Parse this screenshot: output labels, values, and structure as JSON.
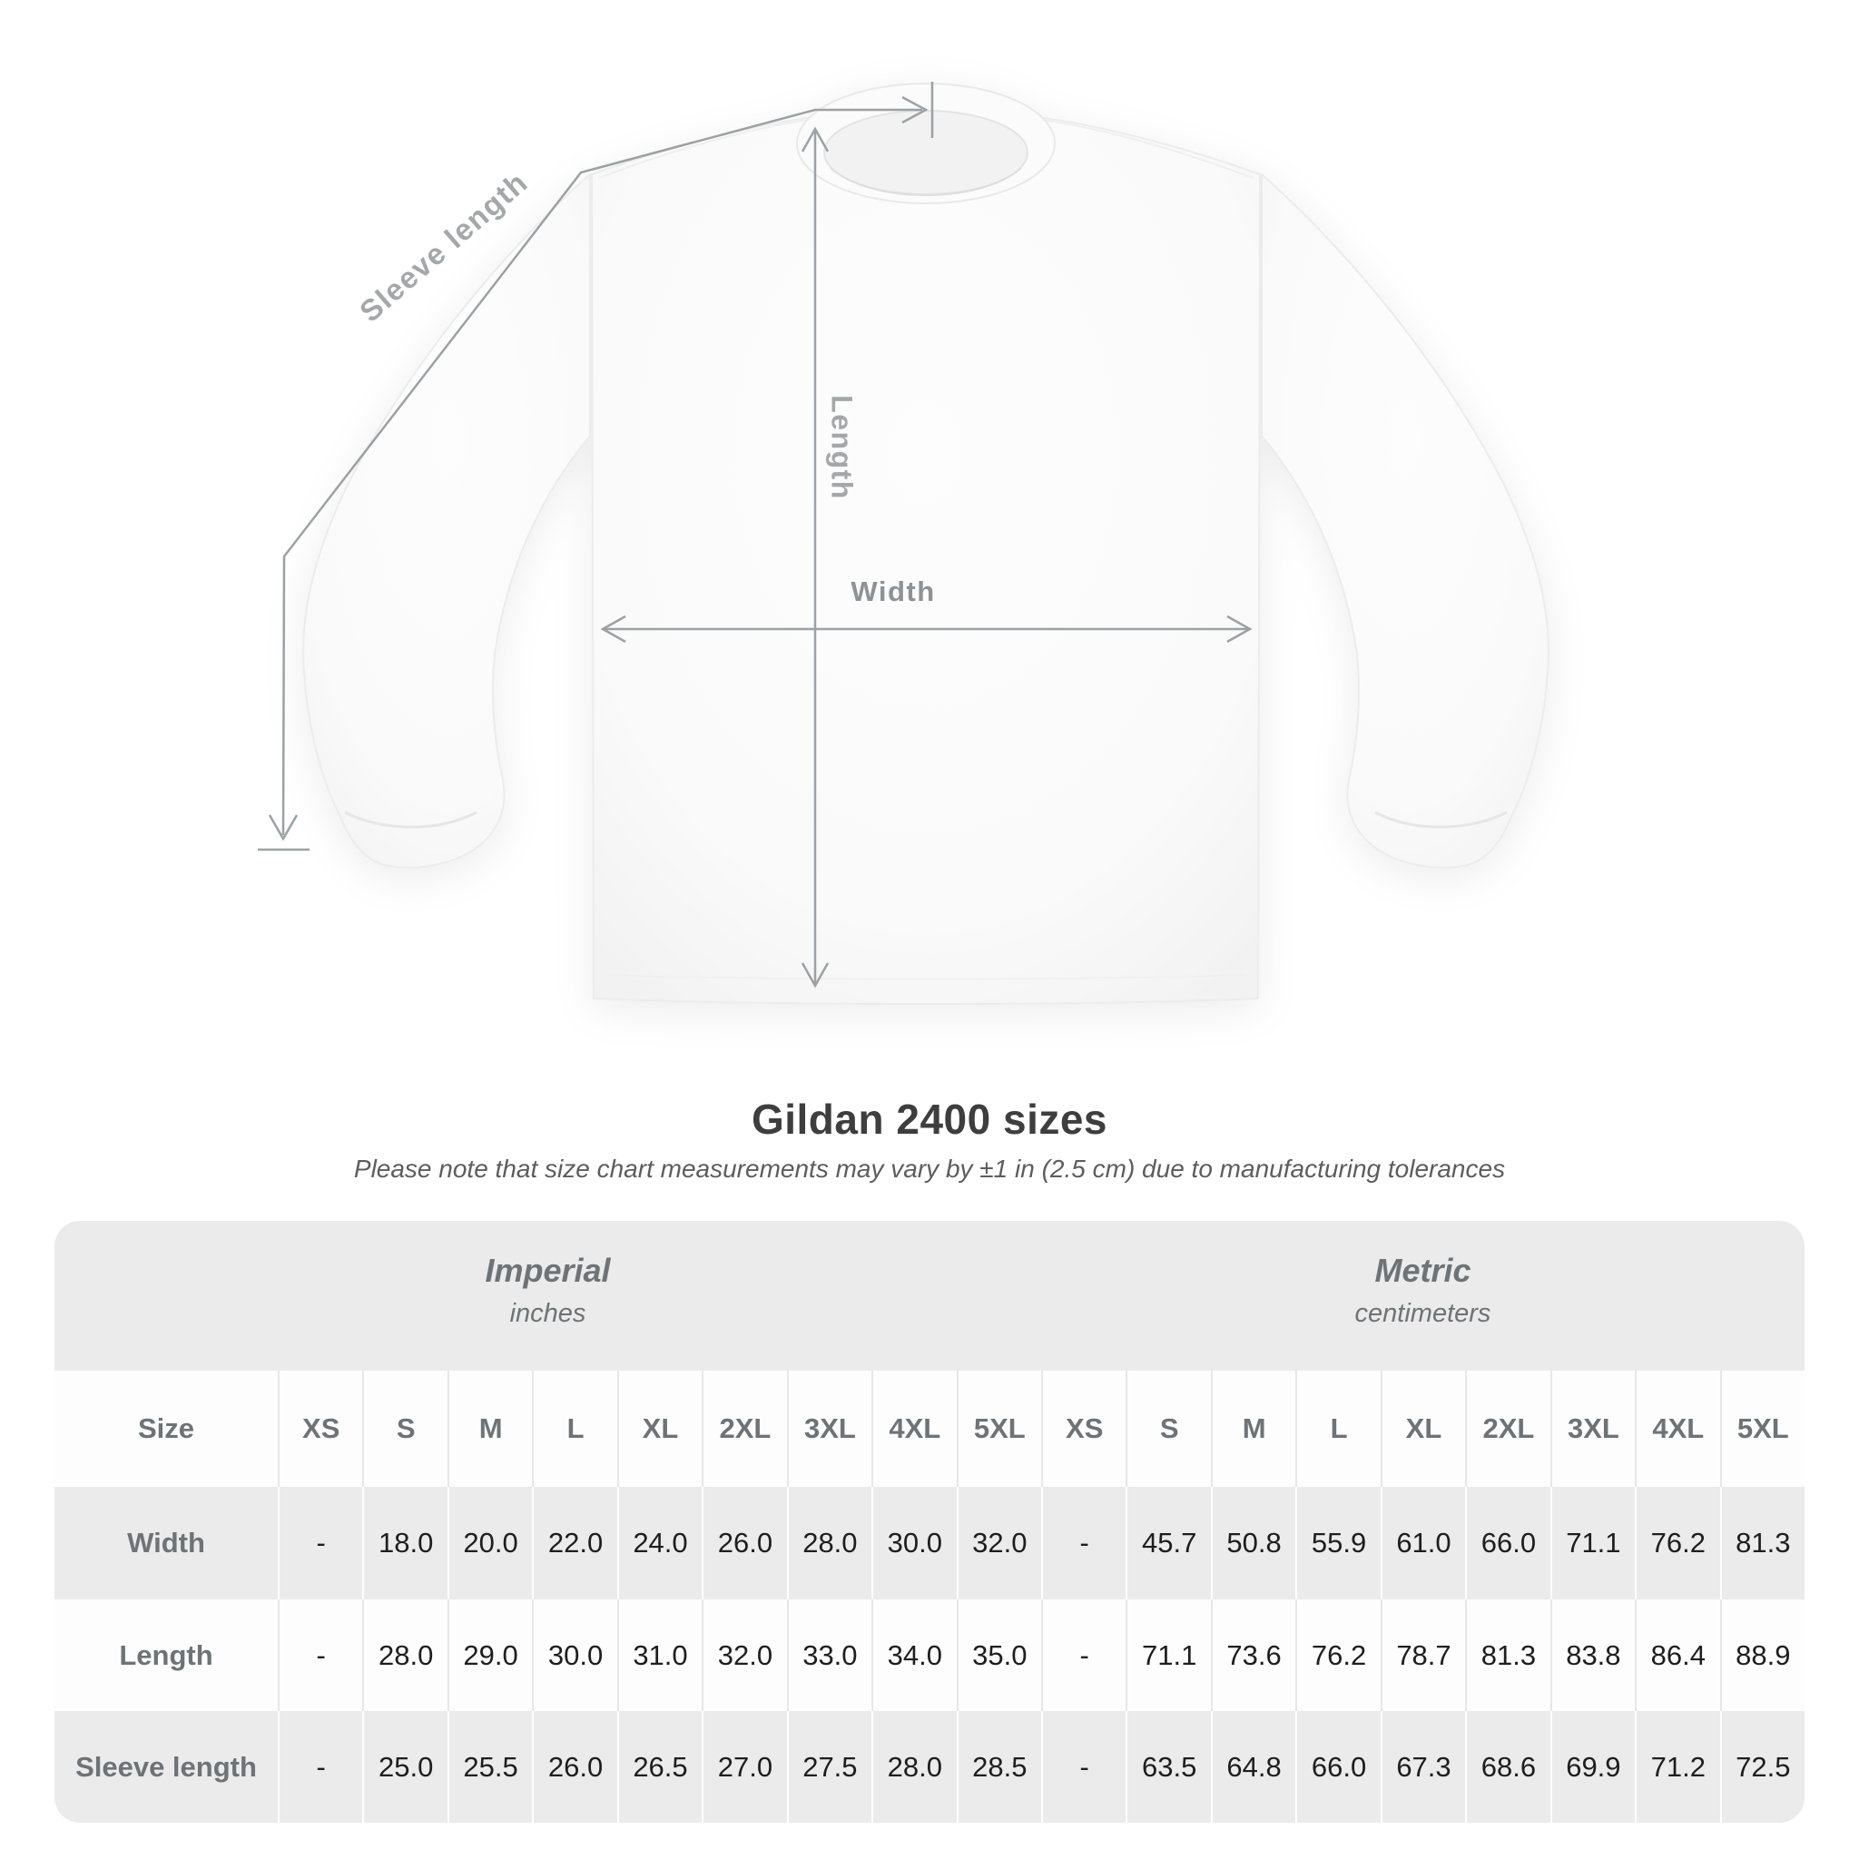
{
  "title": "Gildan 2400 sizes",
  "subtitle": "Please note that size chart measurements may vary by ±1 in (2.5 cm) due to manufacturing tolerances",
  "diagram": {
    "sleeve_length_label": "Sleeve length",
    "length_label": "Length",
    "width_label": "Width"
  },
  "chart_data": {
    "type": "table",
    "title": "Gildan 2400 sizes",
    "note": "Please note that size chart measurements may vary by ±1 in (2.5 cm) due to manufacturing tolerances",
    "unit_groups": [
      {
        "name": "Imperial",
        "unit": "inches"
      },
      {
        "name": "Metric",
        "unit": "centimeters"
      }
    ],
    "size_header_label": "Size",
    "sizes": [
      "XS",
      "S",
      "M",
      "L",
      "XL",
      "2XL",
      "3XL",
      "4XL",
      "5XL"
    ],
    "rows": [
      {
        "label": "Width",
        "imperial": [
          "-",
          "18.0",
          "20.0",
          "22.0",
          "24.0",
          "26.0",
          "28.0",
          "30.0",
          "32.0"
        ],
        "metric": [
          "-",
          "45.7",
          "50.8",
          "55.9",
          "61.0",
          "66.0",
          "71.1",
          "76.2",
          "81.3"
        ]
      },
      {
        "label": "Length",
        "imperial": [
          "-",
          "28.0",
          "29.0",
          "30.0",
          "31.0",
          "32.0",
          "33.0",
          "34.0",
          "35.0"
        ],
        "metric": [
          "-",
          "71.1",
          "73.6",
          "76.2",
          "78.7",
          "81.3",
          "83.8",
          "86.4",
          "88.9"
        ]
      },
      {
        "label": "Sleeve length",
        "imperial": [
          "-",
          "25.0",
          "25.5",
          "26.0",
          "26.5",
          "27.0",
          "27.5",
          "28.0",
          "28.5"
        ],
        "metric": [
          "-",
          "63.5",
          "64.8",
          "66.0",
          "67.3",
          "68.6",
          "69.9",
          "71.2",
          "72.5"
        ]
      }
    ]
  },
  "colors": {
    "title_text": "#3e3e3e",
    "subtitle_text": "#5d5d5d",
    "accent_text": "#6d7377",
    "data_text": "#1e1e1e",
    "table_background": "#ebebeb",
    "white_row": "#fdfdfd",
    "measurement_lines": "#9ba1a4",
    "measurement_labels": "#a4a8ab"
  }
}
